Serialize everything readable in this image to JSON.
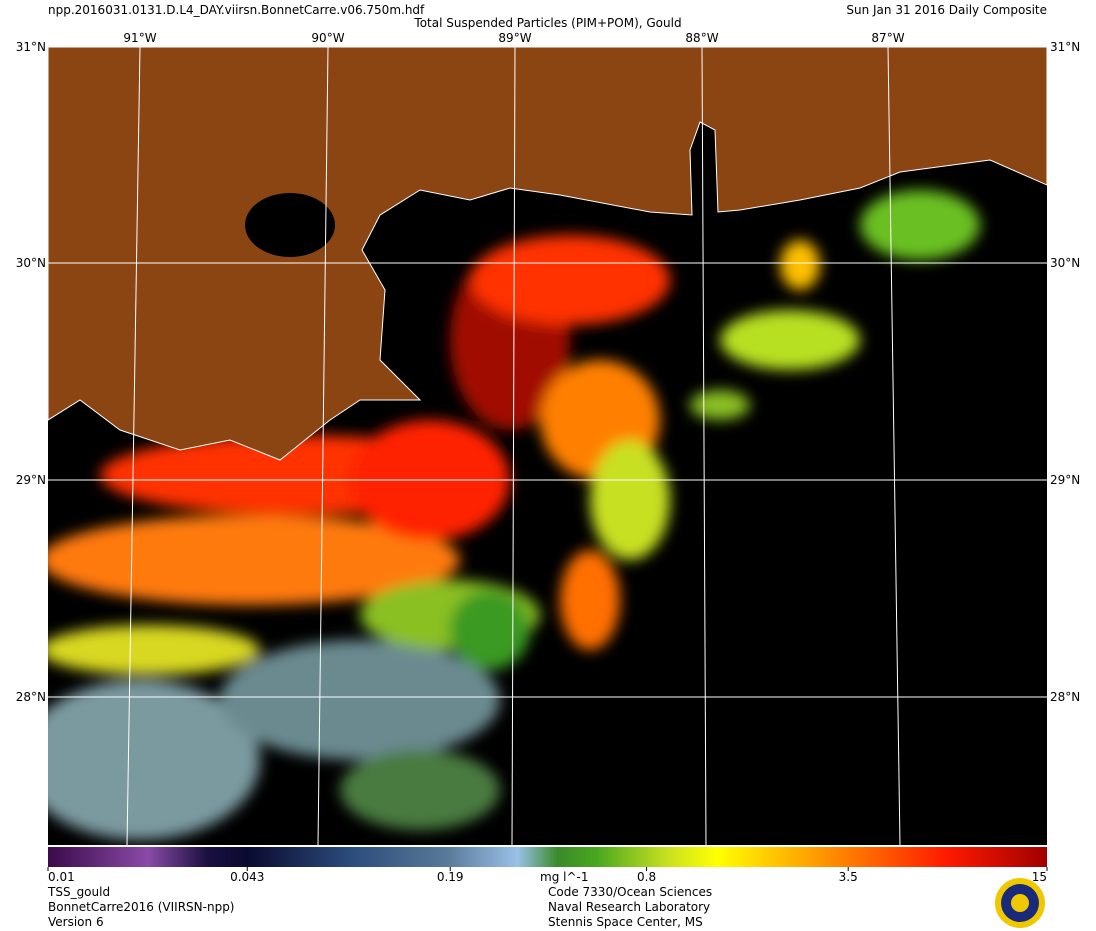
{
  "header": {
    "filename": "npp.2016031.0131.D.L4_DAY.viirsn.BonnetCarre.v06.750m.hdf",
    "title": "Total Suspended Particles (PIM+POM), Gould",
    "date": "Sun Jan 31 2016 Daily Composite"
  },
  "map": {
    "lat_labels": [
      "31°N",
      "30°N",
      "29°N",
      "28°N"
    ],
    "lon_labels": [
      "91°W",
      "90°W",
      "89°W",
      "88°W",
      "87°W"
    ]
  },
  "colorbar": {
    "lim": [
      0.01,
      15
    ],
    "log": true,
    "ticks": [
      0.01,
      0.043,
      0.19,
      0.8,
      3.5,
      15
    ],
    "unit": "mg l^-1"
  },
  "footer": {
    "left": [
      "TSS_gould",
      "BonnetCarre2016 (VIIRSN-npp)",
      "Version 6"
    ],
    "right": [
      "Code 7330/Ocean Sciences",
      "Naval Research Laboratory",
      "Stennis Space Center, MS"
    ]
  }
}
